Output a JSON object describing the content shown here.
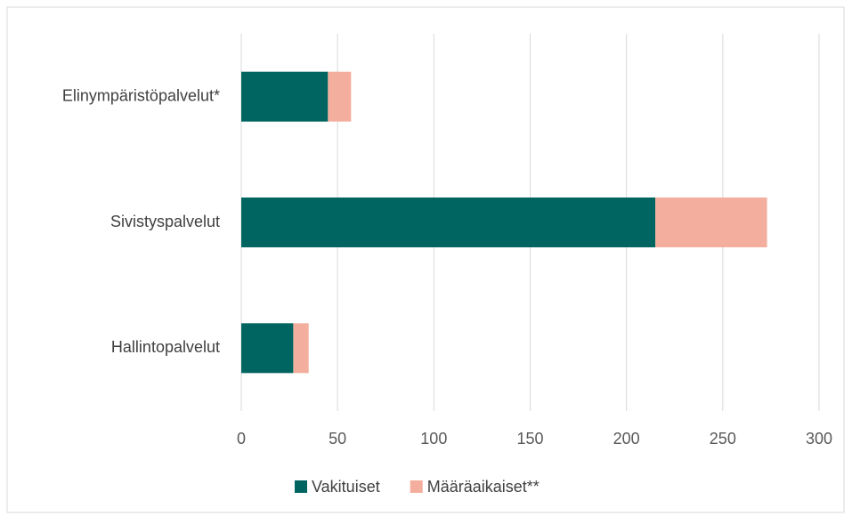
{
  "chart_data": {
    "type": "bar",
    "orientation": "horizontal",
    "stacked": true,
    "categories": [
      "Elinympäristöpalvelut*",
      "Sivistyspalvelut",
      "Hallintopalvelut"
    ],
    "series": [
      {
        "name": "Vakituiset",
        "color": "#006561",
        "values": [
          45,
          215,
          27
        ]
      },
      {
        "name": "Määräaikaiset**",
        "color": "#f4ae9e",
        "values": [
          12,
          58,
          8
        ]
      }
    ],
    "xlim": [
      0,
      300
    ],
    "xticks": [
      0,
      50,
      100,
      150,
      200,
      250,
      300
    ],
    "grid": true,
    "legend": "bottom"
  }
}
